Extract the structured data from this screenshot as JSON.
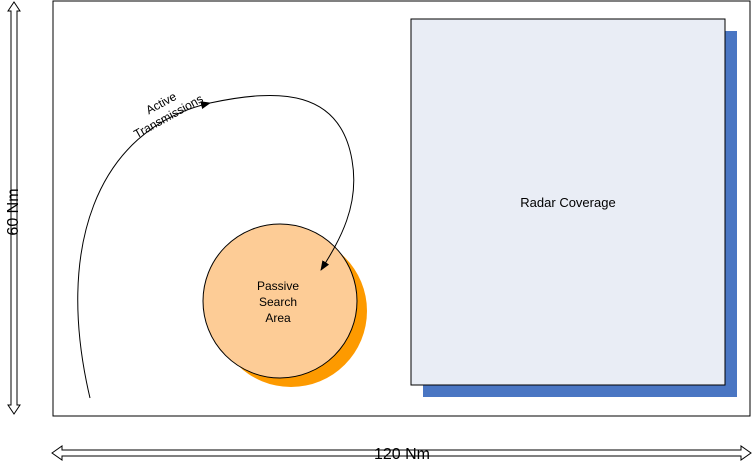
{
  "diagram": {
    "active_label_line1": "Active",
    "active_label_line2": "Transmissions",
    "passive_line1": "Passive",
    "passive_line2": "Search",
    "passive_line3": "Area",
    "radar_label": "Radar Coverage",
    "height_label": "60 Nm",
    "width_label": "120 Nm"
  },
  "colors": {
    "radar_fill": "#e9edf5",
    "radar_shadow": "#4a76c3",
    "circle_fill": "#fdcc96",
    "circle_shadow": "#fd9a00",
    "frame": "#000000"
  }
}
